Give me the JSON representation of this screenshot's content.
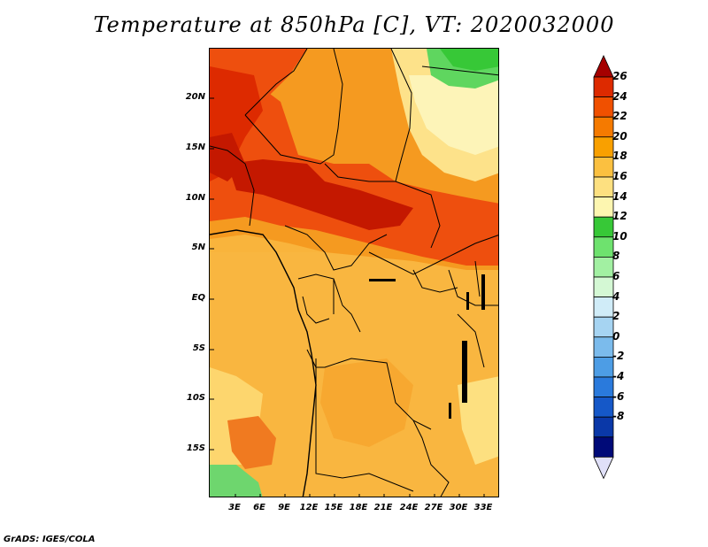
{
  "title": "Temperature at 850hPa [C], VT: 2020032000",
  "footer": "GrADS: IGES/COLA",
  "map": {
    "lat_ticks": [
      "20N",
      "15N",
      "10N",
      "5N",
      "EQ",
      "5S",
      "10S",
      "15S"
    ],
    "lon_ticks": [
      "3E",
      "6E",
      "9E",
      "12E",
      "15E",
      "18E",
      "21E",
      "24E",
      "27E",
      "30E",
      "33E"
    ]
  },
  "colorbar": {
    "labels": [
      "26",
      "24",
      "22",
      "20",
      "18",
      "16",
      "14",
      "12",
      "10",
      "8",
      "6",
      "4",
      "2",
      "0",
      "-2",
      "-4",
      "-6",
      "-8"
    ],
    "colors": [
      "#a50000",
      "#dd2a00",
      "#f05000",
      "#f57a00",
      "#f9a000",
      "#fbc040",
      "#fde080",
      "#fdf6b0",
      "#37c837",
      "#6ee26e",
      "#a2f0a2",
      "#d4f8d4",
      "#d0ecf8",
      "#a6d4f2",
      "#7bbbec",
      "#4d9de5",
      "#2a7adc",
      "#1558c8",
      "#0a38a8",
      "#000a78",
      "#e0e0f8"
    ]
  }
}
